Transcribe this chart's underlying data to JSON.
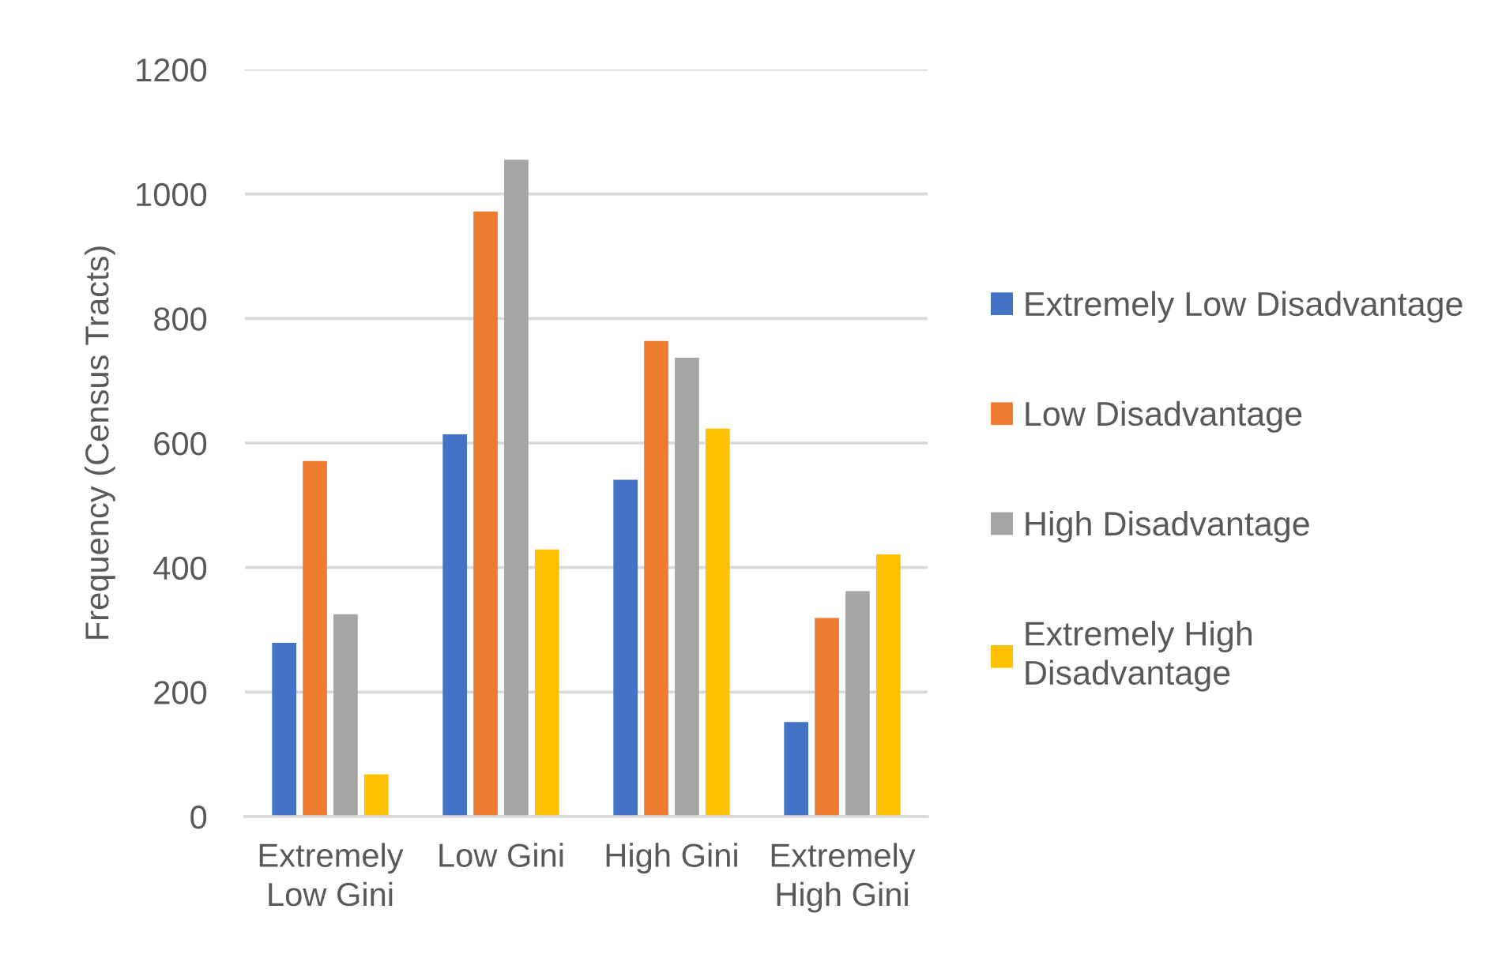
{
  "chart_data": {
    "type": "bar",
    "ylabel": "Frequency (Census Tracts)",
    "categories": [
      "Extremely Low Gini",
      "Low Gini",
      "High Gini",
      "Extremely High Gini"
    ],
    "series": [
      {
        "name": "Extremely Low Disadvantage",
        "color": "#4472c4",
        "values": [
          279,
          614,
          541,
          152
        ]
      },
      {
        "name": "Low Disadvantage",
        "color": "#ed7d31",
        "values": [
          571,
          972,
          764,
          319
        ]
      },
      {
        "name": "High Disadvantage",
        "color": "#a5a5a5",
        "values": [
          325,
          1055,
          737,
          362
        ]
      },
      {
        "name": "Extremely High Disadvantage",
        "color": "#ffc000",
        "values": [
          68,
          429,
          623,
          421
        ]
      }
    ],
    "ylim": [
      0,
      1200
    ],
    "yticks": [
      0,
      200,
      400,
      600,
      800,
      1000,
      1200
    ],
    "grid": "y",
    "legend": "right"
  }
}
